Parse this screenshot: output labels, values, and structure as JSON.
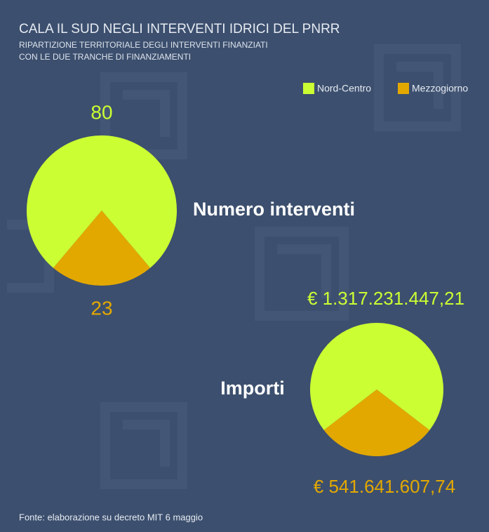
{
  "title": "CALA IL SUD NEGLI INTERVENTI IDRICI DEL PNRR",
  "subtitle": [
    "RIPARTIZIONE TERRITORIALE DEGLI INTERVENTI FINANZIATI",
    "CON LE DUE TRANCHE DI FINANZIAMENTI"
  ],
  "source": "Fonte: elaborazione su decreto MIT 6 maggio",
  "chart_data": [
    {
      "type": "pie",
      "title": "Numero interventi",
      "categories": [
        "Nord-Centro",
        "Mezzogiorno"
      ],
      "values": [
        80,
        23
      ],
      "colors": [
        "#ccff33",
        "#e3a800"
      ],
      "legend": "top-right"
    },
    {
      "type": "pie",
      "title": "Importi",
      "categories": [
        "Nord-Centro",
        "Mezzogiorno"
      ],
      "values": [
        1317231447.21,
        541641607.74
      ],
      "value_labels": [
        "€ 1.317.231.447,21",
        "€ 541.641.607,74"
      ],
      "colors": [
        "#ccff33",
        "#e3a800"
      ]
    }
  ]
}
